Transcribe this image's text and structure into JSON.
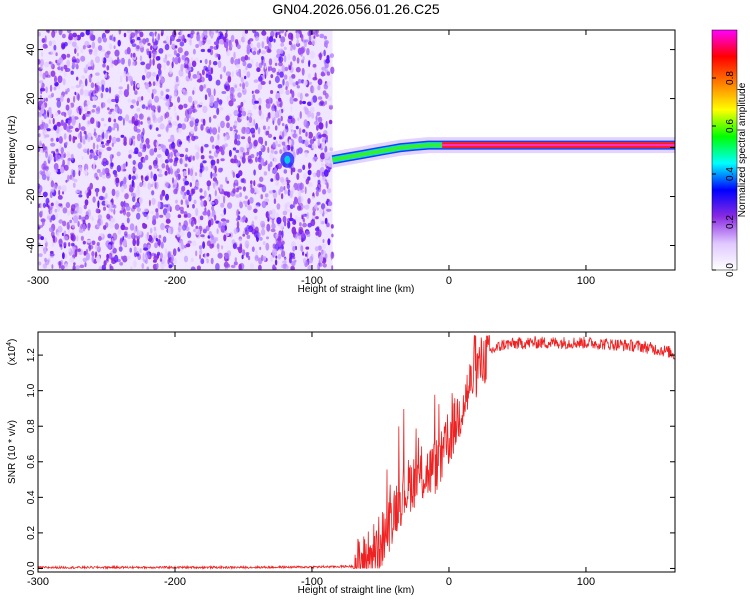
{
  "title": "GN04.2026.056.01.26.C25",
  "chart_data": [
    {
      "type": "heatmap",
      "xlabel": "Height of straight line (km)",
      "ylabel": "Frequency (Hz)",
      "xlim": [
        -300,
        165
      ],
      "ylim": [
        -50,
        48
      ],
      "xticks": [
        -300,
        -200,
        -100,
        0,
        100
      ],
      "yticks": [
        -40,
        -20,
        0,
        20,
        40
      ],
      "noise_region": {
        "x": [
          -300,
          -85
        ],
        "y": [
          -50,
          48
        ]
      },
      "signal_track": {
        "x": [
          -85,
          -75,
          -65,
          -55,
          -45,
          -35,
          -25,
          -15,
          -5,
          0,
          50,
          100,
          165
        ],
        "y": [
          -5,
          -4,
          -3,
          -2,
          -1,
          0,
          0.5,
          1,
          1,
          1,
          1,
          1,
          1
        ]
      },
      "isolated_blob": {
        "x": -118,
        "y": -5
      },
      "colorbar": {
        "label": "Normalized spectral amplitude",
        "range": [
          0,
          1
        ],
        "ticks": [
          "0.0",
          "0.2",
          "0.4",
          "0.6",
          "0.8"
        ],
        "colors": [
          "#ffffff",
          "#e0c8ff",
          "#8a2be2",
          "#0000ff",
          "#00ffff",
          "#00ff00",
          "#ffff00",
          "#ff7f00",
          "#ff0000",
          "#ff00ff"
        ]
      },
      "grid": false
    },
    {
      "type": "line",
      "xlabel": "Height of straight line (km)",
      "ylabel": "SNR (10 * v/v)",
      "y_multiplier": "(x10",
      "y_multiplier_exp": "4",
      "y_multiplier_close": ")",
      "xlim": [
        -300,
        165
      ],
      "ylim": [
        -0.02,
        1.33
      ],
      "xticks": [
        -300,
        -200,
        -100,
        0,
        100
      ],
      "yticks": [
        "0.0",
        "0.2",
        "0.4",
        "0.6",
        "0.8",
        "1.0",
        "1.2"
      ],
      "grid": false,
      "series": [
        {
          "color": "#ee2222",
          "x": [
            -300,
            -250,
            -200,
            -150,
            -100,
            -70,
            -65,
            -60,
            -55,
            -50,
            -45,
            -40,
            -35,
            -30,
            -25,
            -20,
            -15,
            -10,
            -5,
            0,
            5,
            10,
            15,
            20,
            30,
            40,
            60,
            80,
            100,
            120,
            140,
            160,
            165
          ],
          "y": [
            0.005,
            0.006,
            0.006,
            0.006,
            0.008,
            0.012,
            0.02,
            0.05,
            0.1,
            0.15,
            0.22,
            0.33,
            0.4,
            0.46,
            0.5,
            0.52,
            0.54,
            0.57,
            0.62,
            0.72,
            0.82,
            0.92,
            1.02,
            1.12,
            1.22,
            1.26,
            1.27,
            1.27,
            1.27,
            1.26,
            1.25,
            1.22,
            1.2
          ]
        }
      ]
    }
  ]
}
